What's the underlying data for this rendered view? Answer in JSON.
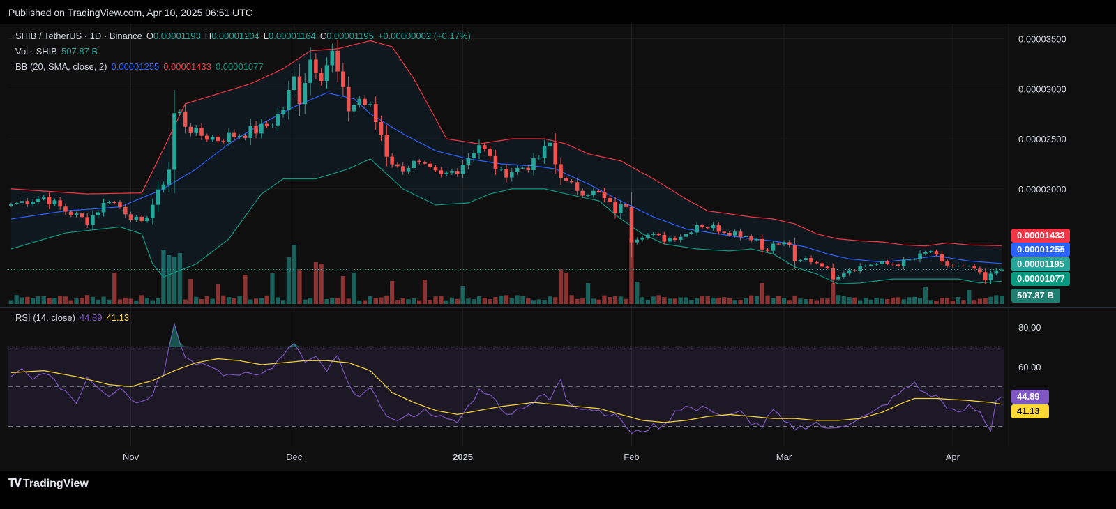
{
  "header": {
    "published": "Published on TradingView.com, Apr 10, 2025 06:51 UTC"
  },
  "footer": {
    "brand": "TradingView"
  },
  "legend": {
    "symbol": "SHIB / TetherUS · 1D · Binance",
    "open_label": "O",
    "open": "0.00001193",
    "high_label": "H",
    "high": "0.00001204",
    "low_label": "L",
    "low": "0.00001164",
    "close_label": "C",
    "close": "0.00001195",
    "change": "+0.00000002 (+0.17%)",
    "vol_label": "Vol · SHIB",
    "vol": "507.87 B",
    "bb_label": "BB (20, SMA, close, 2)",
    "bb_basis": "0.00001255",
    "bb_upper": "0.00001433",
    "bb_lower": "0.00001077",
    "rsi_label": "RSI (14, close)",
    "rsi_value": "44.89",
    "rsi_ma": "41.13"
  },
  "badges": {
    "upper": "0.00001433",
    "basis": "0.00001255",
    "close": "0.00001195",
    "lower": "0.00001077",
    "volume": "507.87 B",
    "rsi": "44.89",
    "rsi_ma": "41.13"
  },
  "colors": {
    "up": "#26a69a",
    "down": "#ef5350",
    "bb_basis": "#2962ff",
    "bb_upper": "#f23645",
    "bb_lower": "#089981",
    "rsi": "#7e57c2",
    "rsi_ma": "#fdd835"
  },
  "chart_data": {
    "type": "candlestick",
    "symbol": "SHIB / TetherUS",
    "interval": "1D",
    "exchange": "Binance",
    "price_axis": {
      "ylim": [
        8.5e-06,
        3.65e-05
      ],
      "ticks": [
        "0.00002000",
        "0.00002500",
        "0.00003000",
        "0.00003500"
      ],
      "tick_values": [
        2e-05,
        2.5e-05,
        3e-05,
        3.5e-05
      ]
    },
    "x_axis": {
      "ticks": [
        {
          "label": "Nov",
          "index": 22
        },
        {
          "label": "Dec",
          "index": 52
        },
        {
          "label": "2025",
          "index": 83
        },
        {
          "label": "Feb",
          "index": 114
        },
        {
          "label": "Mar",
          "index": 142
        },
        {
          "label": "Apr",
          "index": 173
        }
      ],
      "bars": 183
    },
    "anchors": {
      "close": [
        [
          0,
          1.85
        ],
        [
          6,
          1.92
        ],
        [
          10,
          1.78
        ],
        [
          14,
          1.68
        ],
        [
          18,
          1.9
        ],
        [
          20,
          1.82
        ],
        [
          24,
          1.64
        ],
        [
          27,
          1.95
        ],
        [
          29,
          2.2
        ],
        [
          30,
          2.75
        ],
        [
          31,
          2.75
        ],
        [
          32,
          2.65
        ],
        [
          34,
          2.55
        ],
        [
          38,
          2.5
        ],
        [
          42,
          2.55
        ],
        [
          46,
          2.6
        ],
        [
          48,
          2.67
        ],
        [
          50,
          2.8
        ],
        [
          52,
          3.1
        ],
        [
          53,
          2.9
        ],
        [
          55,
          3.3
        ],
        [
          57,
          3.15
        ],
        [
          59,
          3.35
        ],
        [
          61,
          2.95
        ],
        [
          62,
          2.8
        ],
        [
          64,
          2.9
        ],
        [
          66,
          2.8
        ],
        [
          68,
          2.55
        ],
        [
          69,
          2.35
        ],
        [
          71,
          2.2
        ],
        [
          74,
          2.25
        ],
        [
          76,
          2.2
        ],
        [
          79,
          2.12
        ],
        [
          82,
          2.2
        ],
        [
          86,
          2.45
        ],
        [
          88,
          2.3
        ],
        [
          90,
          2.15
        ],
        [
          93,
          2.2
        ],
        [
          96,
          2.25
        ],
        [
          99,
          2.45
        ],
        [
          100,
          2.25
        ],
        [
          102,
          2.05
        ],
        [
          105,
          1.98
        ],
        [
          108,
          1.95
        ],
        [
          111,
          1.78
        ],
        [
          113,
          1.85
        ],
        [
          114,
          1.5
        ],
        [
          116,
          1.55
        ],
        [
          120,
          1.5
        ],
        [
          124,
          1.55
        ],
        [
          126,
          1.65
        ],
        [
          130,
          1.6
        ],
        [
          134,
          1.55
        ],
        [
          137,
          1.5
        ],
        [
          138,
          1.4
        ],
        [
          141,
          1.45
        ],
        [
          143,
          1.45
        ],
        [
          144,
          1.25
        ],
        [
          146,
          1.3
        ],
        [
          149,
          1.25
        ],
        [
          151,
          1.12
        ],
        [
          154,
          1.2
        ],
        [
          158,
          1.25
        ],
        [
          163,
          1.25
        ],
        [
          166,
          1.3
        ],
        [
          169,
          1.38
        ],
        [
          171,
          1.25
        ],
        [
          174,
          1.22
        ],
        [
          177,
          1.2
        ],
        [
          179,
          1.08
        ],
        [
          181,
          1.19
        ],
        [
          182,
          1.195
        ]
      ],
      "bb_basis": [
        [
          0,
          1.7
        ],
        [
          10,
          1.78
        ],
        [
          20,
          1.82
        ],
        [
          28,
          2.0
        ],
        [
          34,
          2.2
        ],
        [
          40,
          2.45
        ],
        [
          46,
          2.65
        ],
        [
          52,
          2.82
        ],
        [
          58,
          2.96
        ],
        [
          63,
          2.9
        ],
        [
          66,
          2.75
        ],
        [
          72,
          2.55
        ],
        [
          78,
          2.38
        ],
        [
          84,
          2.3
        ],
        [
          90,
          2.25
        ],
        [
          96,
          2.23
        ],
        [
          100,
          2.2
        ],
        [
          106,
          2.05
        ],
        [
          112,
          1.88
        ],
        [
          118,
          1.72
        ],
        [
          124,
          1.6
        ],
        [
          130,
          1.55
        ],
        [
          136,
          1.5
        ],
        [
          140,
          1.48
        ],
        [
          146,
          1.42
        ],
        [
          150,
          1.35
        ],
        [
          154,
          1.3
        ],
        [
          160,
          1.27
        ],
        [
          166,
          1.3
        ],
        [
          170,
          1.33
        ],
        [
          176,
          1.28
        ],
        [
          182,
          1.255
        ]
      ],
      "bb_upper": [
        [
          0,
          2.0
        ],
        [
          14,
          1.95
        ],
        [
          24,
          1.96
        ],
        [
          28,
          2.4
        ],
        [
          32,
          2.85
        ],
        [
          38,
          2.95
        ],
        [
          44,
          3.05
        ],
        [
          50,
          3.2
        ],
        [
          55,
          3.38
        ],
        [
          60,
          3.4
        ],
        [
          66,
          3.48
        ],
        [
          70,
          3.42
        ],
        [
          74,
          3.1
        ],
        [
          78,
          2.7
        ],
        [
          80,
          2.5
        ],
        [
          86,
          2.45
        ],
        [
          92,
          2.5
        ],
        [
          98,
          2.5
        ],
        [
          102,
          2.45
        ],
        [
          106,
          2.35
        ],
        [
          112,
          2.28
        ],
        [
          118,
          2.1
        ],
        [
          124,
          1.9
        ],
        [
          128,
          1.78
        ],
        [
          132,
          1.75
        ],
        [
          136,
          1.72
        ],
        [
          140,
          1.7
        ],
        [
          144,
          1.65
        ],
        [
          148,
          1.55
        ],
        [
          152,
          1.5
        ],
        [
          156,
          1.48
        ],
        [
          160,
          1.47
        ],
        [
          164,
          1.44
        ],
        [
          168,
          1.43
        ],
        [
          172,
          1.46
        ],
        [
          176,
          1.44
        ],
        [
          182,
          1.433
        ]
      ],
      "bb_lower": [
        [
          0,
          1.4
        ],
        [
          10,
          1.56
        ],
        [
          20,
          1.62
        ],
        [
          24,
          1.55
        ],
        [
          26,
          1.25
        ],
        [
          28,
          1.12
        ],
        [
          34,
          1.25
        ],
        [
          40,
          1.5
        ],
        [
          46,
          1.95
        ],
        [
          50,
          2.1
        ],
        [
          56,
          2.1
        ],
        [
          62,
          2.2
        ],
        [
          66,
          2.3
        ],
        [
          68,
          2.2
        ],
        [
          72,
          2.0
        ],
        [
          78,
          1.84
        ],
        [
          84,
          1.86
        ],
        [
          88,
          1.95
        ],
        [
          92,
          2.0
        ],
        [
          98,
          2.0
        ],
        [
          102,
          1.95
        ],
        [
          108,
          1.88
        ],
        [
          112,
          1.7
        ],
        [
          116,
          1.55
        ],
        [
          120,
          1.45
        ],
        [
          126,
          1.4
        ],
        [
          132,
          1.38
        ],
        [
          136,
          1.4
        ],
        [
          140,
          1.35
        ],
        [
          144,
          1.22
        ],
        [
          148,
          1.15
        ],
        [
          152,
          1.05
        ],
        [
          156,
          1.06
        ],
        [
          162,
          1.1
        ],
        [
          168,
          1.1
        ],
        [
          174,
          1.1
        ],
        [
          178,
          1.06
        ],
        [
          182,
          1.077
        ]
      ]
    },
    "volume_spikes": [
      [
        19,
        0.45
      ],
      [
        28,
        0.78
      ],
      [
        29,
        0.7
      ],
      [
        30,
        0.68
      ],
      [
        31,
        0.73
      ],
      [
        33,
        0.36
      ],
      [
        38,
        0.28
      ],
      [
        43,
        0.42
      ],
      [
        48,
        0.44
      ],
      [
        51,
        0.67
      ],
      [
        52,
        0.85
      ],
      [
        53,
        0.5
      ],
      [
        56,
        0.6
      ],
      [
        57,
        0.58
      ],
      [
        61,
        0.4
      ],
      [
        63,
        0.45
      ],
      [
        70,
        0.33
      ],
      [
        76,
        0.35
      ],
      [
        83,
        0.26
      ],
      [
        101,
        0.5
      ],
      [
        102,
        0.45
      ],
      [
        106,
        0.3
      ],
      [
        114,
        0.94
      ],
      [
        115,
        0.32
      ],
      [
        138,
        0.3
      ],
      [
        151,
        0.3
      ],
      [
        168,
        0.25
      ],
      [
        176,
        0.2
      ]
    ],
    "rsi": {
      "ylim": [
        20,
        88
      ],
      "ticks": [
        "60.00",
        "80.00"
      ],
      "tick_values": [
        60,
        80
      ],
      "bands": [
        30,
        50,
        70
      ],
      "anchors": [
        [
          0,
          55
        ],
        [
          2,
          58
        ],
        [
          4,
          53
        ],
        [
          6,
          58
        ],
        [
          8,
          52
        ],
        [
          10,
          48
        ],
        [
          12,
          42
        ],
        [
          14,
          55
        ],
        [
          16,
          50
        ],
        [
          18,
          46
        ],
        [
          20,
          50
        ],
        [
          22,
          44
        ],
        [
          24,
          42
        ],
        [
          26,
          47
        ],
        [
          27,
          55
        ],
        [
          28,
          57
        ],
        [
          30,
          82
        ],
        [
          31,
          72
        ],
        [
          32,
          66
        ],
        [
          34,
          60
        ],
        [
          36,
          61
        ],
        [
          40,
          55
        ],
        [
          44,
          58
        ],
        [
          46,
          56
        ],
        [
          48,
          60
        ],
        [
          50,
          65
        ],
        [
          52,
          72
        ],
        [
          54,
          62
        ],
        [
          56,
          64
        ],
        [
          58,
          58
        ],
        [
          60,
          65
        ],
        [
          62,
          50
        ],
        [
          64,
          46
        ],
        [
          66,
          48
        ],
        [
          68,
          40
        ],
        [
          70,
          33
        ],
        [
          72,
          34
        ],
        [
          74,
          36
        ],
        [
          76,
          38
        ],
        [
          78,
          36
        ],
        [
          80,
          33
        ],
        [
          82,
          32
        ],
        [
          84,
          40
        ],
        [
          86,
          48
        ],
        [
          88,
          47
        ],
        [
          90,
          38
        ],
        [
          92,
          37
        ],
        [
          94,
          40
        ],
        [
          96,
          42
        ],
        [
          98,
          46
        ],
        [
          99,
          43
        ],
        [
          101,
          54
        ],
        [
          102,
          44
        ],
        [
          104,
          40
        ],
        [
          108,
          38
        ],
        [
          112,
          34
        ],
        [
          114,
          26
        ],
        [
          116,
          28
        ],
        [
          118,
          30
        ],
        [
          120,
          30
        ],
        [
          122,
          38
        ],
        [
          124,
          40
        ],
        [
          126,
          38
        ],
        [
          128,
          40
        ],
        [
          130,
          36
        ],
        [
          132,
          35
        ],
        [
          134,
          37
        ],
        [
          136,
          32
        ],
        [
          138,
          30
        ],
        [
          140,
          38
        ],
        [
          142,
          32
        ],
        [
          144,
          29
        ],
        [
          146,
          30
        ],
        [
          148,
          32
        ],
        [
          150,
          28
        ],
        [
          152,
          30
        ],
        [
          154,
          32
        ],
        [
          156,
          34
        ],
        [
          158,
          36
        ],
        [
          160,
          40
        ],
        [
          162,
          44
        ],
        [
          164,
          48
        ],
        [
          166,
          52
        ],
        [
          168,
          46
        ],
        [
          170,
          45
        ],
        [
          172,
          40
        ],
        [
          174,
          36
        ],
        [
          176,
          40
        ],
        [
          178,
          37
        ],
        [
          180,
          28
        ],
        [
          181,
          44
        ],
        [
          182,
          44.89
        ]
      ],
      "ma_anchors": [
        [
          0,
          57
        ],
        [
          6,
          58
        ],
        [
          12,
          55
        ],
        [
          18,
          51
        ],
        [
          22,
          50
        ],
        [
          26,
          53
        ],
        [
          30,
          58
        ],
        [
          34,
          62
        ],
        [
          38,
          64
        ],
        [
          42,
          63
        ],
        [
          46,
          61
        ],
        [
          50,
          62
        ],
        [
          54,
          63
        ],
        [
          58,
          63
        ],
        [
          62,
          62
        ],
        [
          66,
          58
        ],
        [
          70,
          47
        ],
        [
          74,
          42
        ],
        [
          78,
          38
        ],
        [
          82,
          36
        ],
        [
          86,
          38
        ],
        [
          90,
          40
        ],
        [
          96,
          42
        ],
        [
          100,
          41
        ],
        [
          104,
          40
        ],
        [
          108,
          39
        ],
        [
          112,
          36
        ],
        [
          116,
          33
        ],
        [
          120,
          32
        ],
        [
          124,
          33
        ],
        [
          128,
          35
        ],
        [
          132,
          36
        ],
        [
          136,
          35
        ],
        [
          140,
          34
        ],
        [
          144,
          34
        ],
        [
          148,
          33
        ],
        [
          152,
          33
        ],
        [
          156,
          34
        ],
        [
          160,
          37
        ],
        [
          164,
          42
        ],
        [
          166,
          44
        ],
        [
          170,
          44
        ],
        [
          176,
          43
        ],
        [
          180,
          42
        ],
        [
          182,
          41.13
        ]
      ]
    }
  }
}
